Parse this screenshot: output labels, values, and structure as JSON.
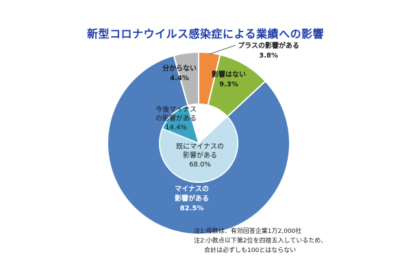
{
  "chart_data": {
    "type": "pie",
    "title": "新型コロナウイルス感染症による業績への影響",
    "outer": [
      {
        "label_lines": [
          "プラスの影響がある",
          "3.8%"
        ],
        "value": 3.8,
        "color": "#f08a3c"
      },
      {
        "label_lines": [
          "影響はない",
          "9.3%"
        ],
        "value": 9.3,
        "color": "#8db63c"
      },
      {
        "label_lines": [
          "マイナスの",
          "影響がある",
          "82.5%"
        ],
        "value": 82.5,
        "color": "#4e7ebd"
      },
      {
        "label_lines": [
          "分からない",
          "4.4%"
        ],
        "value": 4.4,
        "color": "#b7b7b7"
      }
    ],
    "inner": [
      {
        "label_lines": [
          "既にマイナスの",
          "影響がある",
          "68.0%"
        ],
        "value": 68.0,
        "color": "#bfe0ec"
      },
      {
        "label_lines": [
          "今後マイナス",
          "の影響がある",
          "14.4%"
        ],
        "value": 14.4,
        "color": "#3aa3c2"
      }
    ]
  },
  "notes": {
    "line1": "注1:母数は、有効回答企業1万2,000社",
    "line2": "注2:小数点以下第2位を四捨五入しているため、",
    "line3": "合計は必ずしも100とはならない"
  }
}
